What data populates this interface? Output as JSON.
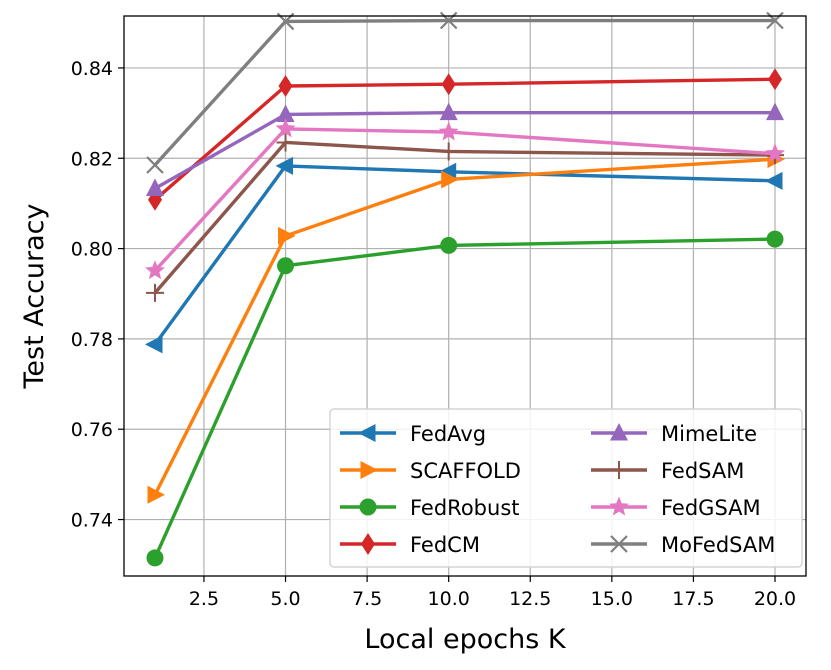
{
  "chart_data": {
    "type": "line",
    "title": "",
    "xlabel": "Local epochs K",
    "ylabel": "Test Accuracy",
    "x": [
      1,
      5,
      10,
      20
    ],
    "xlim": [
      0.05,
      20.95
    ],
    "ylim": [
      0.7275,
      0.8515
    ],
    "xticks": [
      2.5,
      5.0,
      7.5,
      10.0,
      12.5,
      15.0,
      17.5,
      20.0
    ],
    "xtick_labels": [
      "2.5",
      "5.0",
      "7.5",
      "10.0",
      "12.5",
      "15.0",
      "17.5",
      "20.0"
    ],
    "yticks": [
      0.74,
      0.76,
      0.78,
      0.8,
      0.82,
      0.84
    ],
    "ytick_labels": [
      "0.74",
      "0.76",
      "0.78",
      "0.80",
      "0.82",
      "0.84"
    ],
    "grid": true,
    "legend_position": "lower-right",
    "legend_columns": 2,
    "series": [
      {
        "name": "FedAvg",
        "color": "#1f77b4",
        "marker": "triangle-left",
        "values": [
          0.7788,
          0.8183,
          0.817,
          0.815
        ]
      },
      {
        "name": "SCAFFOLD",
        "color": "#ff7f0e",
        "marker": "triangle-right",
        "values": [
          0.7455,
          0.8028,
          0.8153,
          0.8198
        ]
      },
      {
        "name": "FedRobust",
        "color": "#2ca02c",
        "marker": "circle",
        "values": [
          0.7315,
          0.7962,
          0.8007,
          0.8021
        ]
      },
      {
        "name": "FedCM",
        "color": "#d62728",
        "marker": "diamond",
        "values": [
          0.8108,
          0.836,
          0.8364,
          0.8375
        ]
      },
      {
        "name": "MimeLite",
        "color": "#9467bd",
        "marker": "triangle-up",
        "values": [
          0.8133,
          0.8297,
          0.8301,
          0.8301
        ]
      },
      {
        "name": "FedSAM",
        "color": "#8c564b",
        "marker": "plus",
        "values": [
          0.7902,
          0.8235,
          0.8215,
          0.8207
        ]
      },
      {
        "name": "FedGSAM",
        "color": "#e377c2",
        "marker": "star",
        "values": [
          0.7951,
          0.8265,
          0.8258,
          0.821
        ]
      },
      {
        "name": "MoFedSAM",
        "color": "#7f7f7f",
        "marker": "x",
        "values": [
          0.8185,
          0.8503,
          0.8505,
          0.8505
        ]
      }
    ]
  }
}
